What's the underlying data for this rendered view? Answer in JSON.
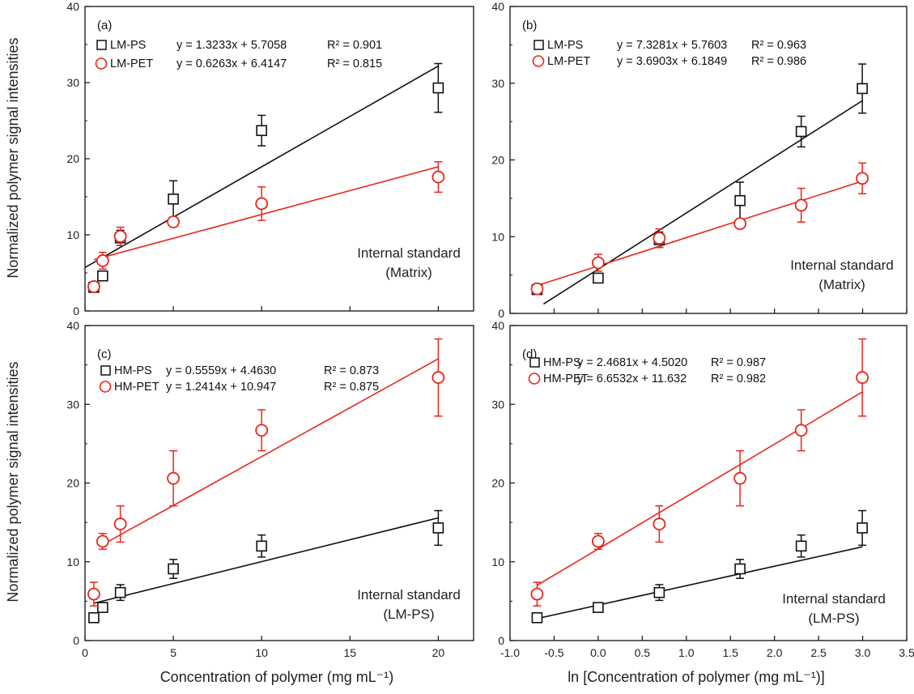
{
  "figure": {
    "ylabel_top": "Normalized polymer signal intensities",
    "ylabel_bottom": "Normalized polymer signal intensities",
    "xlabel_left": "Concentration of polymer (mg mL⁻¹)",
    "xlabel_right": "ln [Concentration of polymer (mg mL⁻¹)]"
  },
  "chart_data": [
    {
      "type": "scatter",
      "panel_label": "(a)",
      "annotation": [
        "Internal standard",
        "(Matrix)"
      ],
      "xlim": [
        0,
        22
      ],
      "ylim": [
        0,
        40
      ],
      "xticks": [
        0,
        5,
        10,
        15,
        20
      ],
      "yticks": [
        0,
        10,
        20,
        30,
        40
      ],
      "xticks_shown": false,
      "series": [
        {
          "name": "LM-PS",
          "marker": "square",
          "color": "#111111",
          "x": [
            0.5,
            1,
            2,
            5,
            10,
            20
          ],
          "y": [
            3.1,
            4.6,
            9.6,
            14.7,
            23.7,
            29.3
          ],
          "err": [
            0.4,
            0.6,
            1.0,
            2.4,
            2.0,
            3.2
          ],
          "equation": "y = 1.3233x + 5.7058",
          "r2": "R² = 0.901",
          "fit": {
            "slope": 1.3233,
            "intercept": 5.7058,
            "x0": 0,
            "x1": 20
          }
        },
        {
          "name": "LM-PET",
          "marker": "circle",
          "color": "#e8261c",
          "x": [
            0.5,
            1,
            2,
            5,
            10,
            20
          ],
          "y": [
            3.2,
            6.6,
            9.8,
            11.7,
            14.1,
            17.6
          ],
          "err": [
            0.4,
            1.1,
            1.2,
            0.4,
            2.2,
            2.0
          ],
          "equation": "y = 0.6263x + 6.4147",
          "r2": "R² = 0.815",
          "fit": {
            "slope": 0.6263,
            "intercept": 6.4147,
            "x0": 0.5,
            "x1": 20
          }
        }
      ]
    },
    {
      "type": "scatter",
      "panel_label": "(b)",
      "annotation": [
        "Internal standard",
        "(Matrix)"
      ],
      "xlim": [
        -1,
        3.5
      ],
      "ylim": [
        0,
        40
      ],
      "xticks": [
        -1,
        -0.5,
        0,
        0.5,
        1,
        1.5,
        2,
        2.5,
        3,
        3.5
      ],
      "yticks": [
        0,
        10,
        20,
        30,
        40
      ],
      "xticks_shown": false,
      "series": [
        {
          "name": "LM-PS",
          "marker": "square",
          "color": "#111111",
          "x": [
            -0.693,
            0,
            0.693,
            1.609,
            2.303,
            2.996
          ],
          "y": [
            3.1,
            4.6,
            9.6,
            14.7,
            23.7,
            29.3
          ],
          "err": [
            0.4,
            0.6,
            1.0,
            2.4,
            2.0,
            3.2
          ],
          "equation": "y = 7.3281x + 5.7603",
          "r2": "R² = 0.963",
          "fit": {
            "slope": 7.3281,
            "intercept": 5.7603,
            "x0": -0.62,
            "x1": 3.0
          }
        },
        {
          "name": "LM-PET",
          "marker": "circle",
          "color": "#e8261c",
          "x": [
            -0.693,
            0,
            0.693,
            1.609,
            2.303,
            2.996
          ],
          "y": [
            3.2,
            6.6,
            9.8,
            11.7,
            14.1,
            17.6
          ],
          "err": [
            0.4,
            1.1,
            1.2,
            0.4,
            2.2,
            2.0
          ],
          "equation": "y = 3.6903x + 6.1849",
          "r2": "R² = 0.986",
          "fit": {
            "slope": 3.6903,
            "intercept": 6.1849,
            "x0": -0.693,
            "x1": 3.0
          }
        }
      ]
    },
    {
      "type": "scatter",
      "panel_label": "(c)",
      "annotation": [
        "Internal standard",
        "(LM-PS)"
      ],
      "xlim": [
        0,
        22
      ],
      "ylim": [
        0,
        40
      ],
      "xticks": [
        0,
        5,
        10,
        15,
        20
      ],
      "yticks": [
        0,
        10,
        20,
        30,
        40
      ],
      "xticks_shown": true,
      "series": [
        {
          "name": "HM-PS",
          "marker": "square",
          "color": "#111111",
          "x": [
            0.5,
            1,
            2,
            5,
            10,
            20
          ],
          "y": [
            2.9,
            4.2,
            6.1,
            9.1,
            12.0,
            14.3
          ],
          "err": [
            0.3,
            0.5,
            1.0,
            1.2,
            1.4,
            2.2
          ],
          "equation": "y = 0.5559x + 4.4630",
          "r2": "R² = 0.873",
          "fit": {
            "slope": 0.5559,
            "intercept": 4.463,
            "x0": 0.5,
            "x1": 20
          }
        },
        {
          "name": "HM-PET",
          "marker": "circle",
          "color": "#e8261c",
          "x": [
            0.5,
            1,
            2,
            5,
            10,
            20
          ],
          "y": [
            5.9,
            12.6,
            14.8,
            20.6,
            26.7,
            33.4
          ],
          "err": [
            1.5,
            1.0,
            2.3,
            3.5,
            2.6,
            4.9
          ],
          "equation": "y = 1.2414x + 10.947",
          "r2": "R² = 0.875",
          "fit": {
            "slope": 1.2414,
            "intercept": 10.947,
            "x0": 1,
            "x1": 20
          }
        }
      ]
    },
    {
      "type": "scatter",
      "panel_label": "(d)",
      "annotation": [
        "Internal standard",
        "(LM-PS)"
      ],
      "xlim": [
        -1,
        3.5
      ],
      "ylim": [
        0,
        40
      ],
      "xticks": [
        -1,
        -0.5,
        0,
        0.5,
        1,
        1.5,
        2,
        2.5,
        3,
        3.5
      ],
      "yticks": [
        0,
        10,
        20,
        30,
        40
      ],
      "xticks_shown": true,
      "series": [
        {
          "name": "HM-PS",
          "marker": "square",
          "color": "#111111",
          "x": [
            -0.693,
            0,
            0.693,
            1.609,
            2.303,
            2.996
          ],
          "y": [
            2.9,
            4.2,
            6.1,
            9.1,
            12.0,
            14.3
          ],
          "err": [
            0.3,
            0.5,
            1.0,
            1.2,
            1.4,
            2.2
          ],
          "equation": "y = 2.4681x + 4.5020",
          "r2": "R² = 0.987",
          "fit": {
            "slope": 2.4681,
            "intercept": 4.502,
            "x0": -0.693,
            "x1": 3.0
          }
        },
        {
          "name": "HM-PET",
          "marker": "circle",
          "color": "#e8261c",
          "x": [
            -0.693,
            0,
            0.693,
            1.609,
            2.303,
            2.996
          ],
          "y": [
            5.9,
            12.6,
            14.8,
            20.6,
            26.7,
            33.4
          ],
          "err": [
            1.5,
            1.0,
            2.3,
            3.5,
            2.6,
            4.9
          ],
          "equation": "y = 6.6532x + 11.632",
          "r2": "R² = 0.982",
          "fit": {
            "slope": 6.6532,
            "intercept": 11.632,
            "x0": -0.693,
            "x1": 3.0
          }
        }
      ]
    }
  ]
}
